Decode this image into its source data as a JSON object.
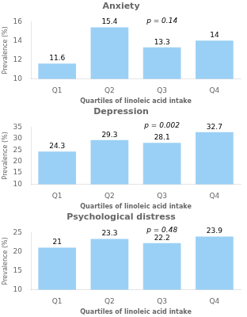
{
  "chart_data": [
    {
      "type": "bar",
      "title": "Anxiety",
      "categories": [
        "Q1",
        "Q2",
        "Q3",
        "Q4"
      ],
      "values": [
        11.6,
        15.4,
        13.3,
        14.0
      ],
      "xlabel": "Quartiles of linoleic acid intake",
      "ylabel": "Prevalence (%)",
      "ylim": [
        10,
        16
      ],
      "yticks": [
        10,
        12,
        14,
        16
      ],
      "grid": false,
      "data_labels": true,
      "annotations": [
        {
          "text": "p = 0.14",
          "x": "Q3",
          "y": 15.65
        }
      ]
    },
    {
      "type": "bar",
      "title": "Depression",
      "categories": [
        "Q1",
        "Q2",
        "Q3",
        "Q4"
      ],
      "values": [
        24.3,
        29.3,
        28.1,
        32.7
      ],
      "xlabel": "Quartiles of linoleic acid intake",
      "ylabel": "Prevalence (%)",
      "ylim": [
        10,
        35
      ],
      "yticks": [
        10,
        15,
        20,
        25,
        30,
        35
      ],
      "grid": false,
      "data_labels": true,
      "annotations": [
        {
          "text": "p = 0.002",
          "x": "Q3",
          "y": 34.0
        }
      ]
    },
    {
      "type": "bar",
      "title": "Psychological distress",
      "categories": [
        "Q1",
        "Q2",
        "Q3",
        "Q4"
      ],
      "values": [
        21.0,
        23.3,
        22.2,
        23.9
      ],
      "xlabel": "Quartiles of linoleic acid intake",
      "ylabel": "Prevalence (%)",
      "ylim": [
        10,
        25
      ],
      "yticks": [
        10,
        15,
        20,
        25
      ],
      "grid": false,
      "data_labels": true,
      "annotations": [
        {
          "text": "p = 0.48",
          "x": "Q3",
          "y": 24.5
        }
      ]
    }
  ]
}
